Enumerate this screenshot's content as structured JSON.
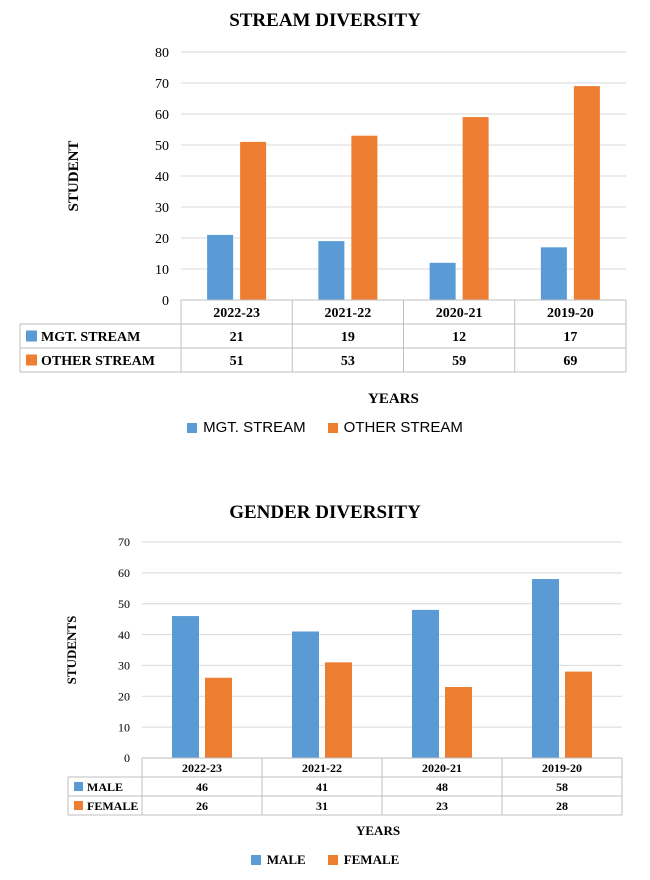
{
  "colors": {
    "series_a": "#5B9BD5",
    "series_b": "#ED7D31",
    "grid": "#d9d9d9",
    "axis": "#bfbfbf"
  },
  "chart_data": [
    {
      "type": "bar",
      "title": "STREAM DIVERSITY",
      "xlabel": "YEARS",
      "ylabel": "STUDENT",
      "categories": [
        "2022-23",
        "2021-22",
        "2020-21",
        "2019-20"
      ],
      "series": [
        {
          "name": "MGT. STREAM",
          "values": [
            21,
            19,
            12,
            17
          ]
        },
        {
          "name": "OTHER STREAM",
          "values": [
            51,
            53,
            59,
            69
          ]
        }
      ],
      "ylim": [
        0,
        80
      ],
      "yticks": [
        0,
        10,
        20,
        30,
        40,
        50,
        60,
        70,
        80
      ],
      "grid": true,
      "legend": "bottom",
      "data_table": true
    },
    {
      "type": "bar",
      "title": "GENDER DIVERSITY",
      "xlabel": "YEARS",
      "ylabel": "STUDENTS",
      "categories": [
        "2022-23",
        "2021-22",
        "2020-21",
        "2019-20"
      ],
      "series": [
        {
          "name": "MALE",
          "values": [
            46,
            41,
            48,
            58
          ]
        },
        {
          "name": "FEMALE",
          "values": [
            26,
            31,
            23,
            28
          ]
        }
      ],
      "ylim": [
        0,
        70
      ],
      "yticks": [
        0,
        10,
        20,
        30,
        40,
        50,
        60,
        70
      ],
      "grid": true,
      "legend": "bottom",
      "data_table": true
    }
  ]
}
